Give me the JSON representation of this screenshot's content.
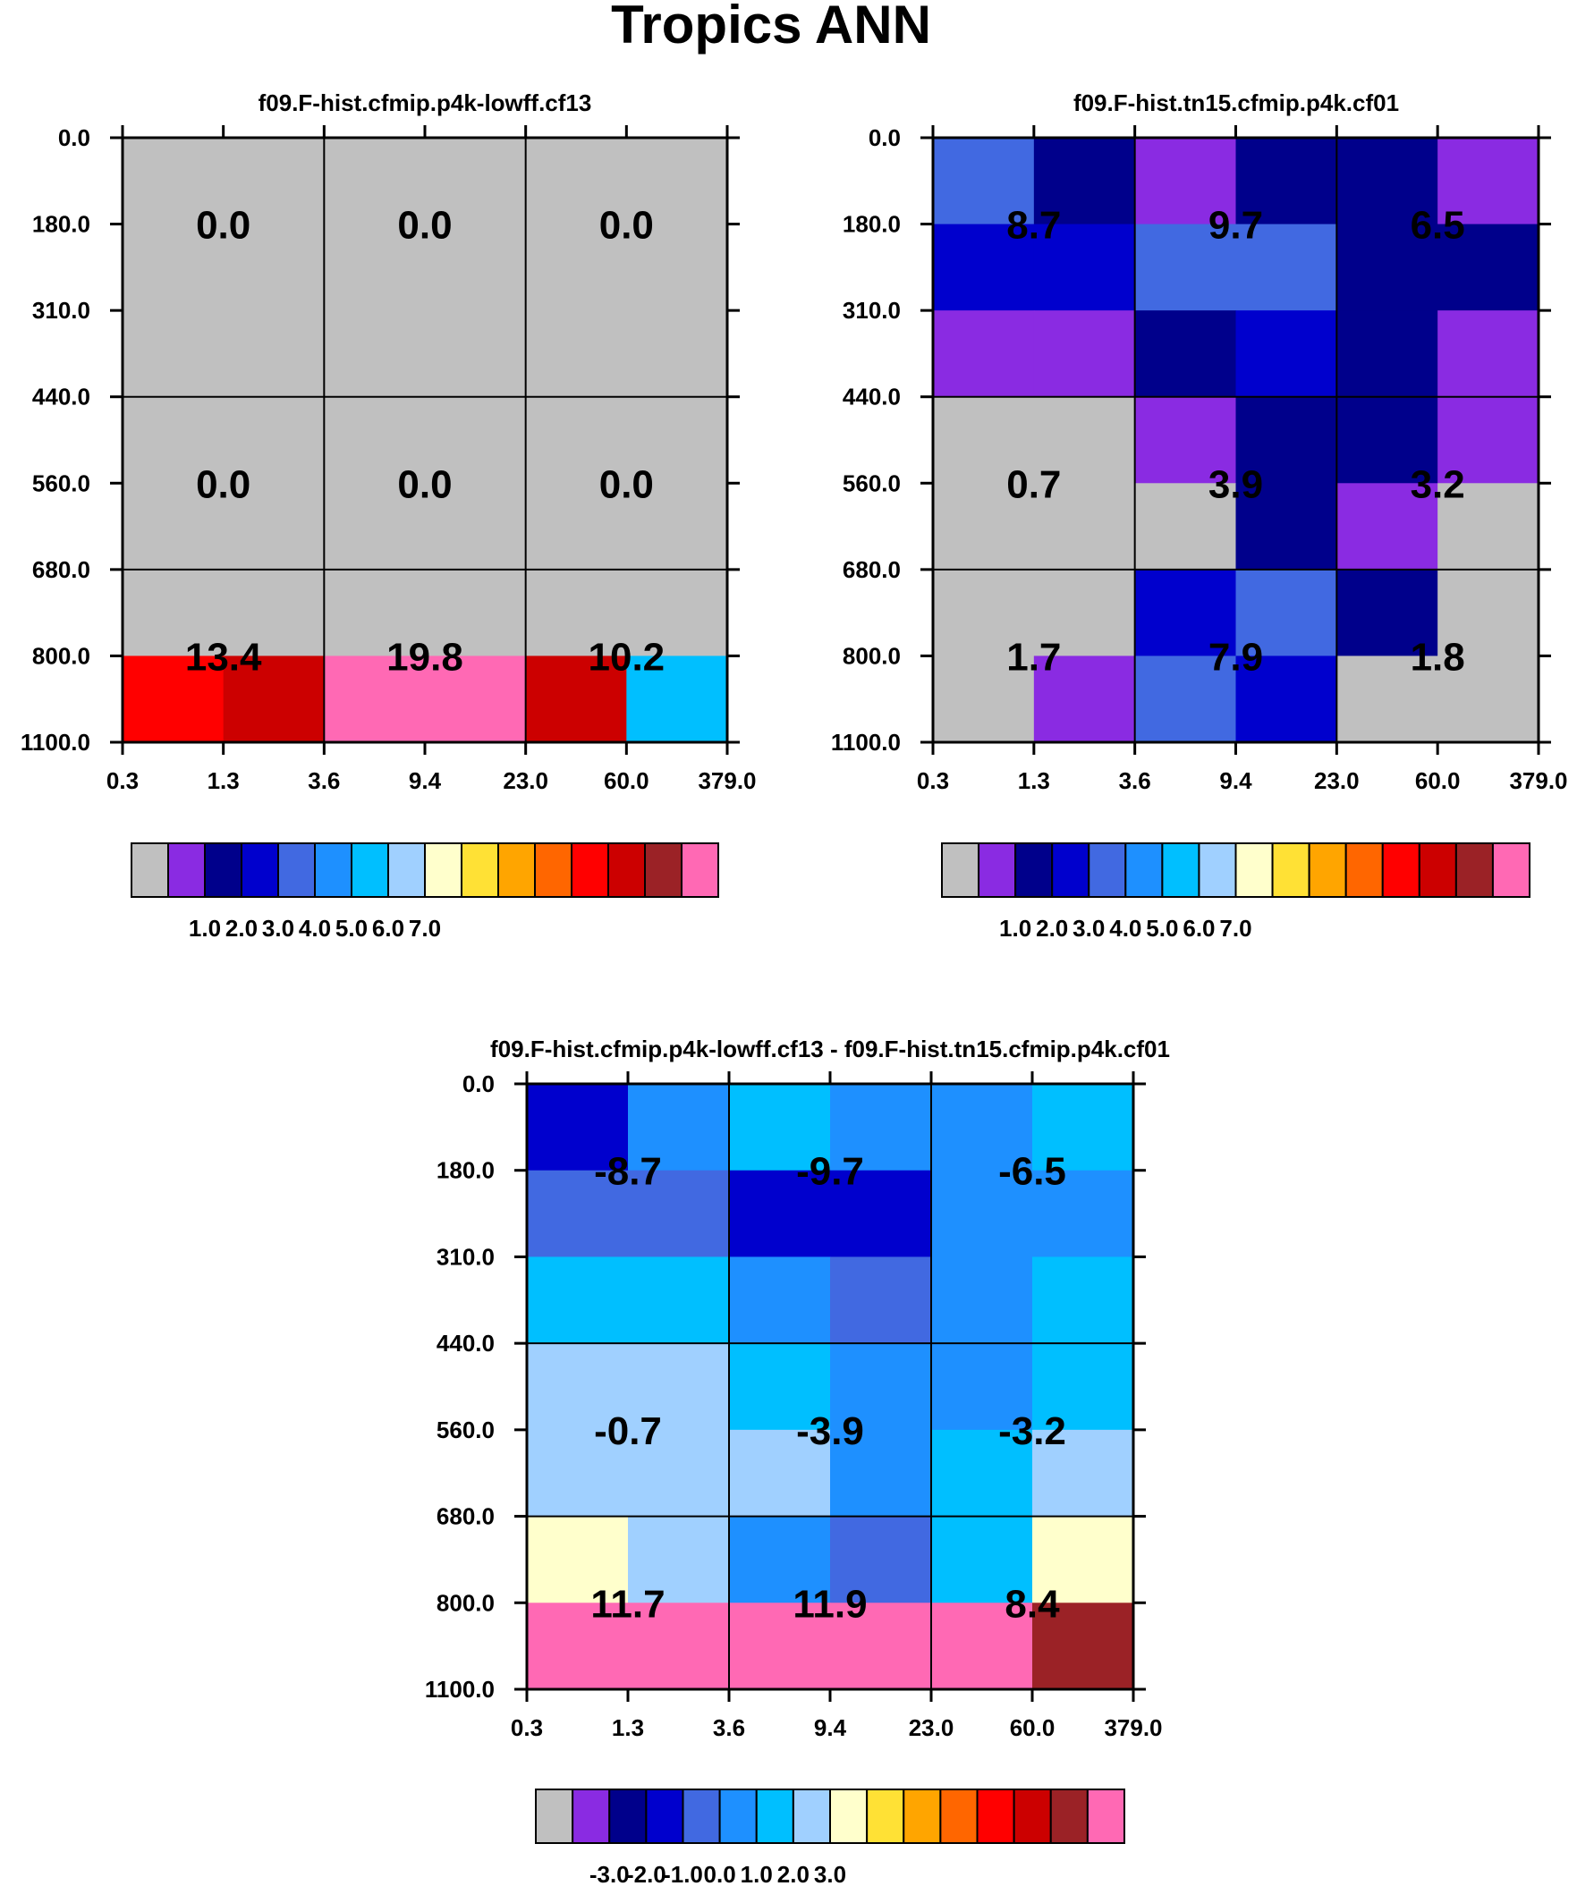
{
  "figure": {
    "title": "Tropics ANN"
  },
  "palette": [
    "#c0c0c0",
    "#8a2be2",
    "#00008b",
    "#0000cd",
    "#4169e1",
    "#1e90ff",
    "#00bfff",
    "#a0d0ff",
    "#ffffcc",
    "#ffe135",
    "#ffa500",
    "#ff6600",
    "#ff0000",
    "#cc0000",
    "#9b2226",
    "#ff69b4"
  ],
  "chart_data": [
    {
      "type": "heatmap",
      "title": "f09.F-hist.cfmip.p4k-lowff.cf13",
      "x_ticks": [
        "0.3",
        "1.3",
        "3.6",
        "9.4",
        "23.0",
        "60.0",
        "379.0"
      ],
      "y_ticks": [
        "0.0",
        "180.0",
        "310.0",
        "440.0",
        "560.0",
        "680.0",
        "800.0",
        "1100.0"
      ],
      "cells": [
        [
          0,
          0,
          0,
          0,
          0,
          0
        ],
        [
          0,
          0,
          0,
          0,
          0,
          0
        ],
        [
          0,
          0,
          0,
          0,
          0,
          0
        ],
        [
          0,
          0,
          0,
          0,
          0,
          0
        ],
        [
          0,
          0,
          0,
          0,
          0,
          0
        ],
        [
          0,
          0,
          0,
          0,
          0,
          0
        ],
        [
          12,
          13,
          15,
          15,
          13,
          6
        ]
      ],
      "group_values": [
        [
          "0.0",
          "0.0",
          "0.0"
        ],
        [
          "0.0",
          "0.0",
          "0.0"
        ],
        [
          "13.4",
          "19.8",
          "10.2"
        ]
      ],
      "colorbar_labels": [
        "1.0",
        "2.0",
        "3.0",
        "4.0",
        "5.0",
        "6.0",
        "7.0"
      ]
    },
    {
      "type": "heatmap",
      "title": "f09.F-hist.tn15.cfmip.p4k.cf01",
      "x_ticks": [
        "0.3",
        "1.3",
        "3.6",
        "9.4",
        "23.0",
        "60.0",
        "379.0"
      ],
      "y_ticks": [
        "0.0",
        "180.0",
        "310.0",
        "440.0",
        "560.0",
        "680.0",
        "800.0",
        "1100.0"
      ],
      "cells": [
        [
          4,
          2,
          1,
          2,
          2,
          1
        ],
        [
          3,
          3,
          4,
          4,
          2,
          2
        ],
        [
          1,
          1,
          2,
          3,
          2,
          1
        ],
        [
          0,
          0,
          1,
          2,
          2,
          1
        ],
        [
          0,
          0,
          0,
          2,
          1,
          0
        ],
        [
          0,
          0,
          3,
          4,
          2,
          0
        ],
        [
          0,
          1,
          4,
          3,
          0,
          0
        ]
      ],
      "group_values": [
        [
          "8.7",
          "9.7",
          "6.5"
        ],
        [
          "0.7",
          "3.9",
          "3.2"
        ],
        [
          "1.7",
          "7.9",
          "1.8"
        ]
      ],
      "colorbar_labels": [
        "1.0",
        "2.0",
        "3.0",
        "4.0",
        "5.0",
        "6.0",
        "7.0"
      ]
    },
    {
      "type": "heatmap",
      "title": "f09.F-hist.cfmip.p4k-lowff.cf13 - f09.F-hist.tn15.cfmip.p4k.cf01",
      "x_ticks": [
        "0.3",
        "1.3",
        "3.6",
        "9.4",
        "23.0",
        "60.0",
        "379.0"
      ],
      "y_ticks": [
        "0.0",
        "180.0",
        "310.0",
        "440.0",
        "560.0",
        "680.0",
        "800.0",
        "1100.0"
      ],
      "cells": [
        [
          3,
          5,
          6,
          5,
          5,
          6
        ],
        [
          4,
          4,
          3,
          3,
          5,
          5
        ],
        [
          6,
          6,
          5,
          4,
          5,
          6
        ],
        [
          7,
          7,
          6,
          5,
          5,
          6
        ],
        [
          7,
          7,
          7,
          5,
          6,
          7
        ],
        [
          8,
          7,
          5,
          4,
          6,
          8
        ],
        [
          15,
          15,
          15,
          15,
          15,
          14
        ]
      ],
      "group_values": [
        [
          "-8.7",
          "-9.7",
          "-6.5"
        ],
        [
          "-0.7",
          "-3.9",
          "-3.2"
        ],
        [
          "11.7",
          "11.9",
          "8.4"
        ]
      ],
      "colorbar_labels": [
        "-3.0",
        "-2.0",
        "-1.0",
        "0.0",
        "1.0",
        "2.0",
        "3.0"
      ]
    }
  ]
}
